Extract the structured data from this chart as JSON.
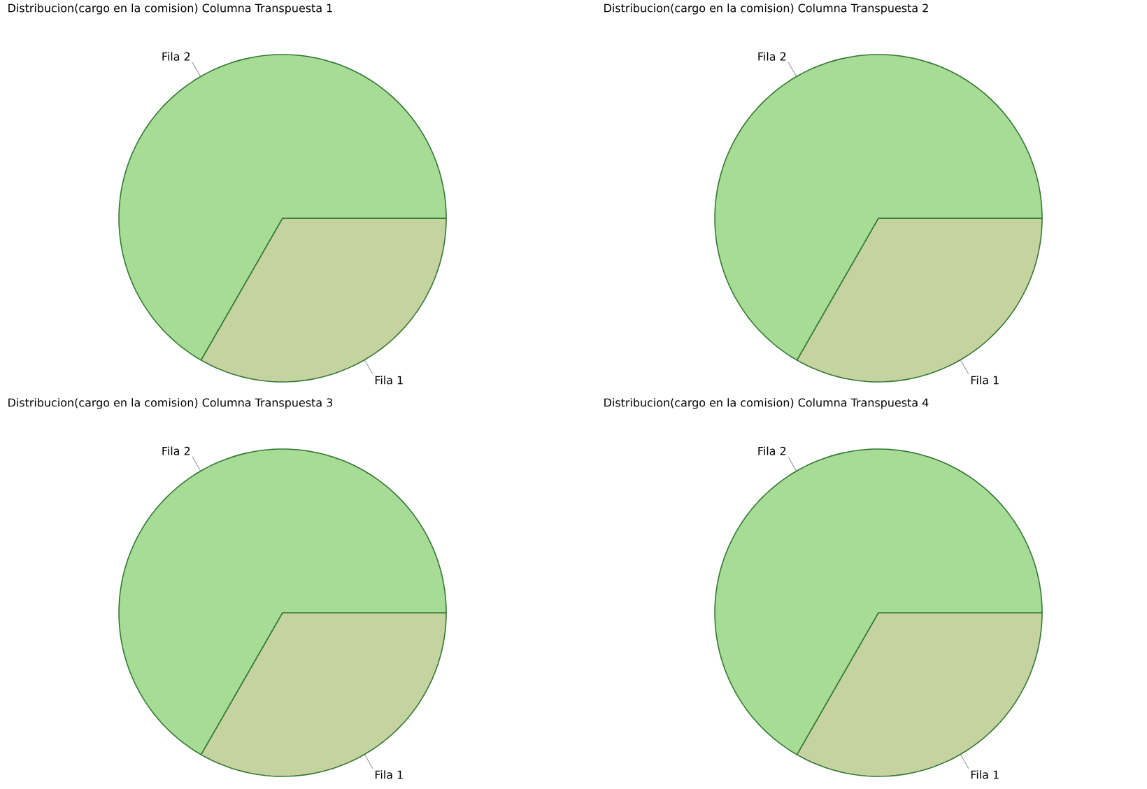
{
  "chart_data": [
    {
      "type": "pie",
      "title": "Distribucion(cargo en la comision)  Columna Transpuesta 1",
      "categories": [
        "Fila 1",
        "Fila 2"
      ],
      "values": [
        33.3,
        66.7
      ],
      "colors": [
        "#c5d3a0",
        "#a6dc96"
      ]
    },
    {
      "type": "pie",
      "title": "Distribucion(cargo en la comision)  Columna Transpuesta 2",
      "categories": [
        "Fila 1",
        "Fila 2"
      ],
      "values": [
        33.3,
        66.7
      ],
      "colors": [
        "#c5d3a0",
        "#a6dc96"
      ]
    },
    {
      "type": "pie",
      "title": "Distribucion(cargo en la comision)  Columna Transpuesta 3",
      "categories": [
        "Fila 1",
        "Fila 2"
      ],
      "values": [
        33.3,
        66.7
      ],
      "colors": [
        "#c5d3a0",
        "#a6dc96"
      ]
    },
    {
      "type": "pie",
      "title": "Distribucion(cargo en la comision)  Columna Transpuesta 4",
      "categories": [
        "Fila 1",
        "Fila 2"
      ],
      "values": [
        33.3,
        66.7
      ],
      "colors": [
        "#c5d3a0",
        "#a6dc96"
      ]
    }
  ]
}
